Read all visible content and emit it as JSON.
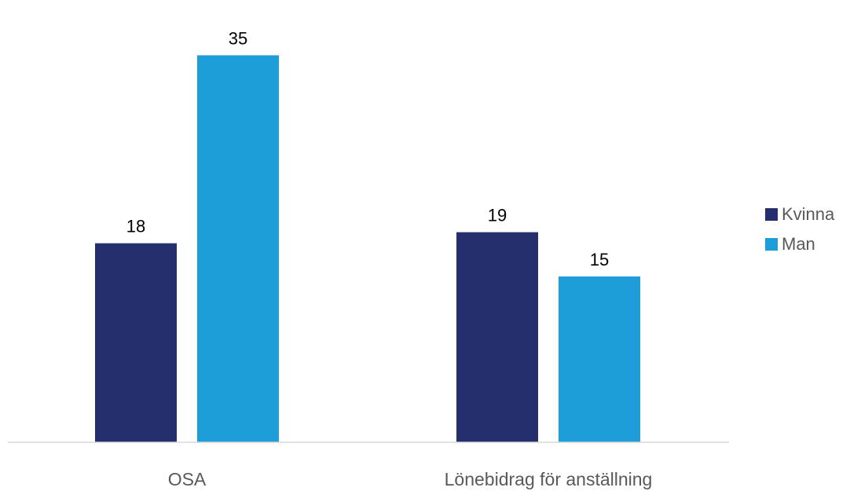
{
  "chart_data": {
    "type": "bar",
    "categories": [
      "OSA",
      "Lönebidrag för anställning"
    ],
    "series": [
      {
        "name": "Kvinna",
        "values": [
          18,
          19
        ],
        "color": "#262f6e"
      },
      {
        "name": "Man",
        "values": [
          35,
          15
        ],
        "color": "#1e9ed9"
      }
    ],
    "title": "",
    "xlabel": "",
    "ylabel": "",
    "ylim": [
      0,
      40
    ],
    "grid": false,
    "legend_position": "right",
    "data_labels": true,
    "axis_color": "#d9d9d9"
  }
}
